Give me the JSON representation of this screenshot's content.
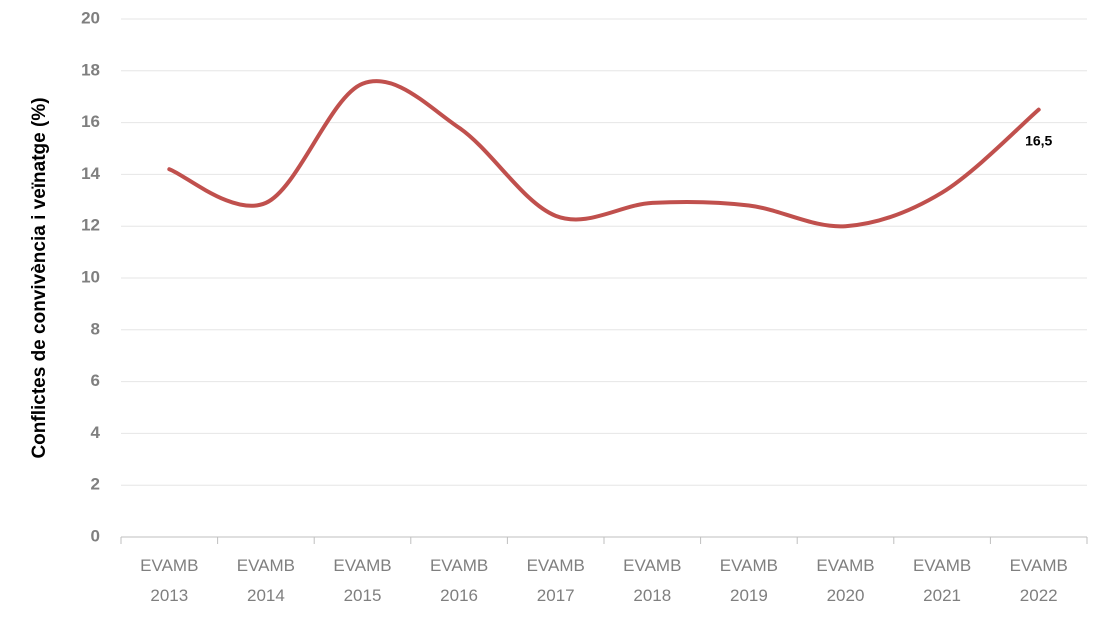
{
  "chart_data": {
    "type": "line",
    "y_label": "Conflictes de convivència i veïnatge (%)",
    "categories": [
      "EVAMB 2013",
      "EVAMB 2014",
      "EVAMB 2015",
      "EVAMB 2016",
      "EVAMB 2017",
      "EVAMB 2018",
      "EVAMB 2019",
      "EVAMB 2020",
      "EVAMB 2021",
      "EVAMB 2022"
    ],
    "values": [
      14.2,
      12.9,
      17.5,
      15.8,
      12.4,
      12.9,
      12.8,
      12.0,
      13.3,
      16.5
    ],
    "value_labels": [
      null,
      null,
      null,
      null,
      null,
      null,
      null,
      null,
      null,
      "16,5"
    ],
    "color": "#c0504d",
    "smooth": true,
    "ylim": [
      0,
      20
    ],
    "yticks": [
      0,
      2,
      4,
      6,
      8,
      10,
      12,
      14,
      16,
      18,
      20
    ],
    "grid": true
  }
}
